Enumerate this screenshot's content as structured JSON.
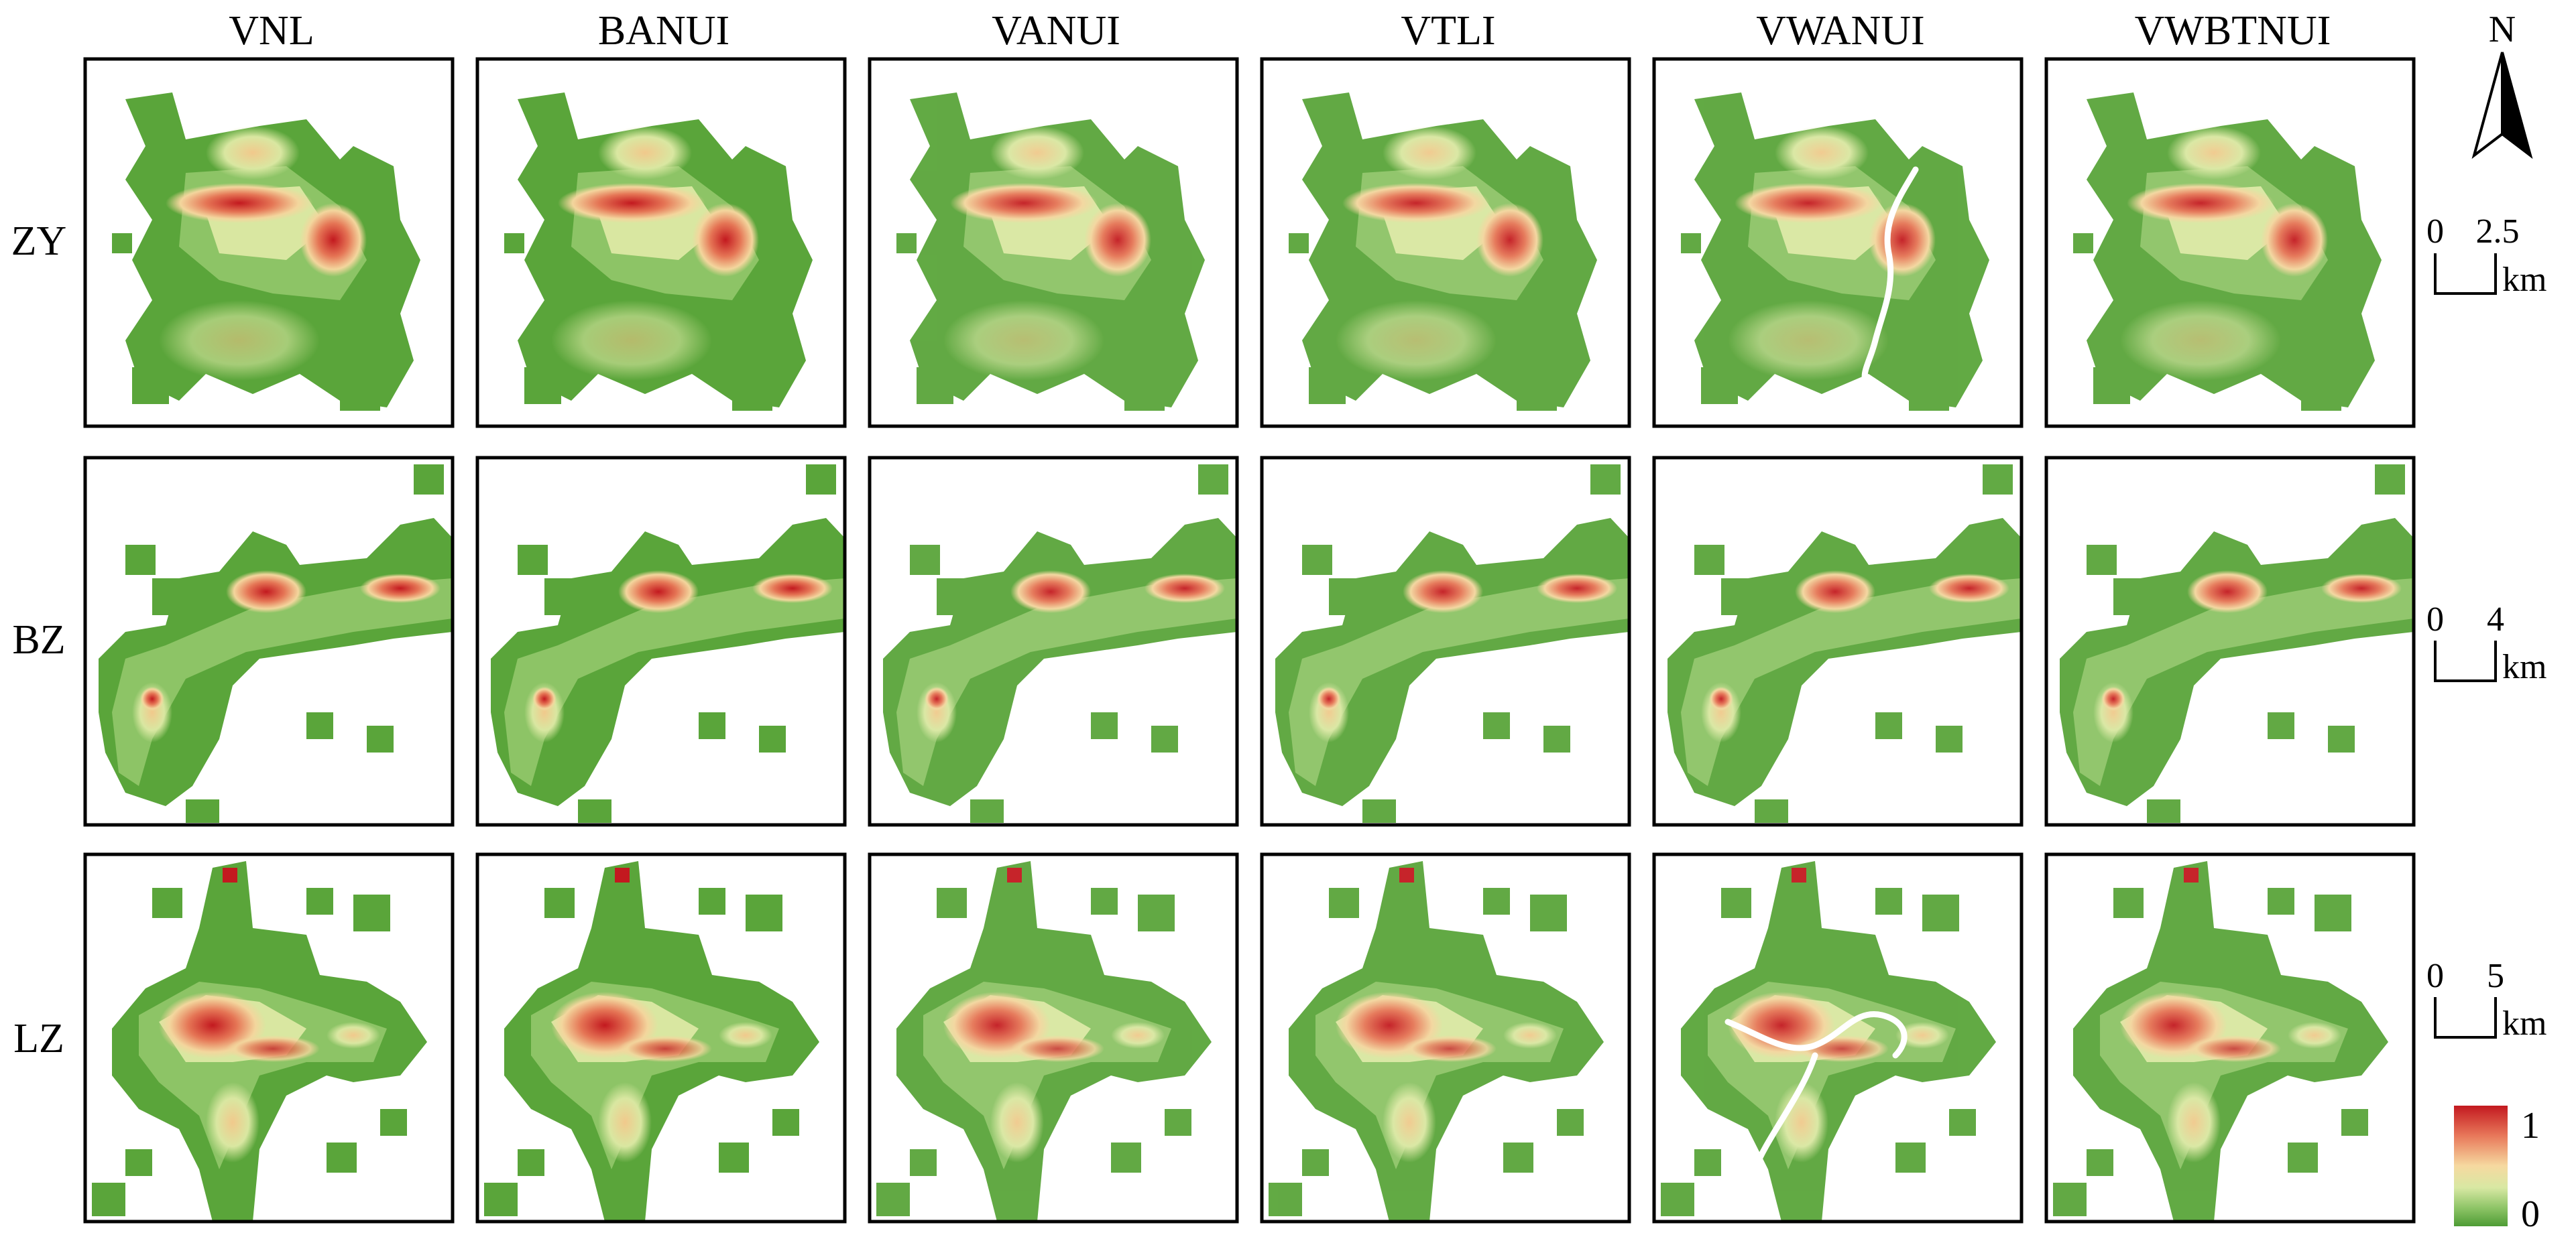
{
  "figure": {
    "columns": [
      {
        "key": "VNL",
        "label": "VNL"
      },
      {
        "key": "BANUI",
        "label": "BANUI"
      },
      {
        "key": "VANUI",
        "label": "VANUI"
      },
      {
        "key": "VTLI",
        "label": "VTLI"
      },
      {
        "key": "VWANUI",
        "label": "VWANUI"
      },
      {
        "key": "VWBTNUI",
        "label": "VWBTNUI"
      }
    ],
    "rows": [
      {
        "key": "ZY",
        "label": "ZY",
        "scale": {
          "zero": "0",
          "value": "2.5",
          "unit": "km"
        }
      },
      {
        "key": "BZ",
        "label": "BZ",
        "scale": {
          "zero": "0",
          "value": "4",
          "unit": "km"
        }
      },
      {
        "key": "LZ",
        "label": "LZ",
        "scale": {
          "zero": "0",
          "value": "5",
          "unit": "km"
        }
      }
    ],
    "north_arrow": {
      "label": "N"
    },
    "legend": {
      "max_label": "1",
      "min_label": "0",
      "colors": [
        "#c3191f",
        "#e8785a",
        "#f6d9a0",
        "#d8e8a3",
        "#8dc466",
        "#4e9c35"
      ]
    }
  }
}
